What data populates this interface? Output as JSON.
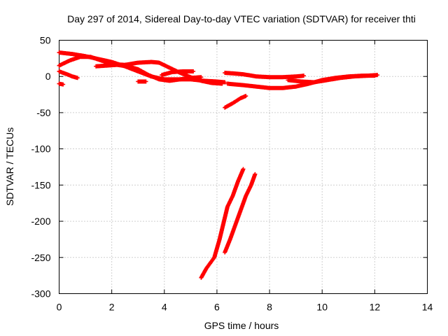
{
  "chart_data": {
    "type": "scatter",
    "title": "Day 297 of 2014, Sidereal Day-to-day VTEC variation (SDTVAR) for receiver thti",
    "xlabel": "GPS time / hours",
    "ylabel": "SDTVAR / TECUs",
    "xlim": [
      0,
      14
    ],
    "ylim": [
      -300,
      50
    ],
    "xticks": [
      0,
      2,
      4,
      6,
      8,
      10,
      12,
      14
    ],
    "yticks": [
      -300,
      -250,
      -200,
      -150,
      -100,
      -50,
      0,
      50
    ],
    "grid": true,
    "legend": "none",
    "marker": "plus",
    "color": "#ff0000",
    "tracks": [
      [
        [
          0,
          33
        ],
        [
          0.5,
          31
        ],
        [
          1.0,
          28
        ],
        [
          1.5,
          24
        ],
        [
          2.0,
          20
        ],
        [
          2.5,
          14
        ],
        [
          3.0,
          7
        ],
        [
          3.5,
          0
        ],
        [
          4.0,
          -4
        ],
        [
          4.5,
          -4
        ],
        [
          5.0,
          -4
        ],
        [
          5.5,
          -6
        ],
        [
          6.0,
          -7
        ],
        [
          6.3,
          -8
        ]
      ],
      [
        [
          0,
          15
        ],
        [
          0.4,
          22
        ],
        [
          0.8,
          27
        ],
        [
          1.2,
          27
        ],
        [
          1.6,
          22
        ],
        [
          2.0,
          17
        ],
        [
          2.5,
          16
        ],
        [
          3.0,
          19
        ],
        [
          3.5,
          20
        ],
        [
          3.8,
          19
        ],
        [
          4.2,
          12
        ],
        [
          4.6,
          5
        ],
        [
          5.0,
          -1
        ],
        [
          5.4,
          -6
        ],
        [
          5.8,
          -9
        ],
        [
          6.2,
          -10
        ]
      ],
      [
        [
          0,
          7
        ],
        [
          0.3,
          3
        ],
        [
          0.5,
          0
        ],
        [
          0.7,
          -2
        ]
      ],
      [
        [
          0,
          -10
        ],
        [
          0.15,
          -11
        ]
      ],
      [
        [
          1.4,
          14
        ],
        [
          1.8,
          15
        ],
        [
          2.2,
          16
        ],
        [
          2.6,
          14
        ],
        [
          3.0,
          10
        ],
        [
          3.4,
          2
        ],
        [
          3.8,
          -4
        ],
        [
          4.2,
          -6
        ],
        [
          4.6,
          -4
        ],
        [
          5.0,
          -2
        ],
        [
          5.4,
          -1
        ]
      ],
      [
        [
          3.0,
          -7
        ],
        [
          3.3,
          -7
        ]
      ],
      [
        [
          3.9,
          2
        ],
        [
          4.3,
          6
        ],
        [
          4.7,
          7
        ],
        [
          5.1,
          7
        ]
      ],
      [
        [
          6.3,
          5
        ],
        [
          6.7,
          4
        ],
        [
          7.0,
          3
        ],
        [
          7.5,
          0
        ],
        [
          8.0,
          -1
        ],
        [
          8.5,
          -1
        ],
        [
          9.0,
          0
        ],
        [
          9.3,
          1
        ]
      ],
      [
        [
          6.4,
          -10
        ],
        [
          7.0,
          -12
        ],
        [
          7.5,
          -14
        ],
        [
          8.0,
          -16
        ],
        [
          8.5,
          -16
        ],
        [
          9.0,
          -14
        ],
        [
          9.5,
          -10
        ],
        [
          10.0,
          -5
        ],
        [
          10.5,
          -2
        ],
        [
          11.0,
          0
        ],
        [
          11.5,
          1
        ],
        [
          12.0,
          1
        ]
      ],
      [
        [
          8.7,
          -5
        ],
        [
          9.2,
          -7
        ],
        [
          9.7,
          -8
        ],
        [
          10.2,
          -5
        ],
        [
          10.7,
          -2
        ],
        [
          11.2,
          0
        ],
        [
          11.7,
          1
        ],
        [
          12.1,
          2
        ]
      ],
      [
        [
          6.3,
          -43
        ],
        [
          6.6,
          -37
        ],
        [
          6.9,
          -30
        ],
        [
          7.1,
          -27
        ]
      ],
      [
        [
          5.4,
          -278
        ],
        [
          5.6,
          -265
        ],
        [
          5.9,
          -250
        ],
        [
          6.1,
          -225
        ],
        [
          6.3,
          -195
        ],
        [
          6.4,
          -180
        ],
        [
          6.6,
          -165
        ],
        [
          6.8,
          -145
        ],
        [
          7.0,
          -128
        ]
      ],
      [
        [
          6.3,
          -243
        ],
        [
          6.5,
          -225
        ],
        [
          6.7,
          -205
        ],
        [
          6.9,
          -185
        ],
        [
          7.1,
          -165
        ],
        [
          7.3,
          -150
        ],
        [
          7.45,
          -135
        ]
      ]
    ]
  }
}
